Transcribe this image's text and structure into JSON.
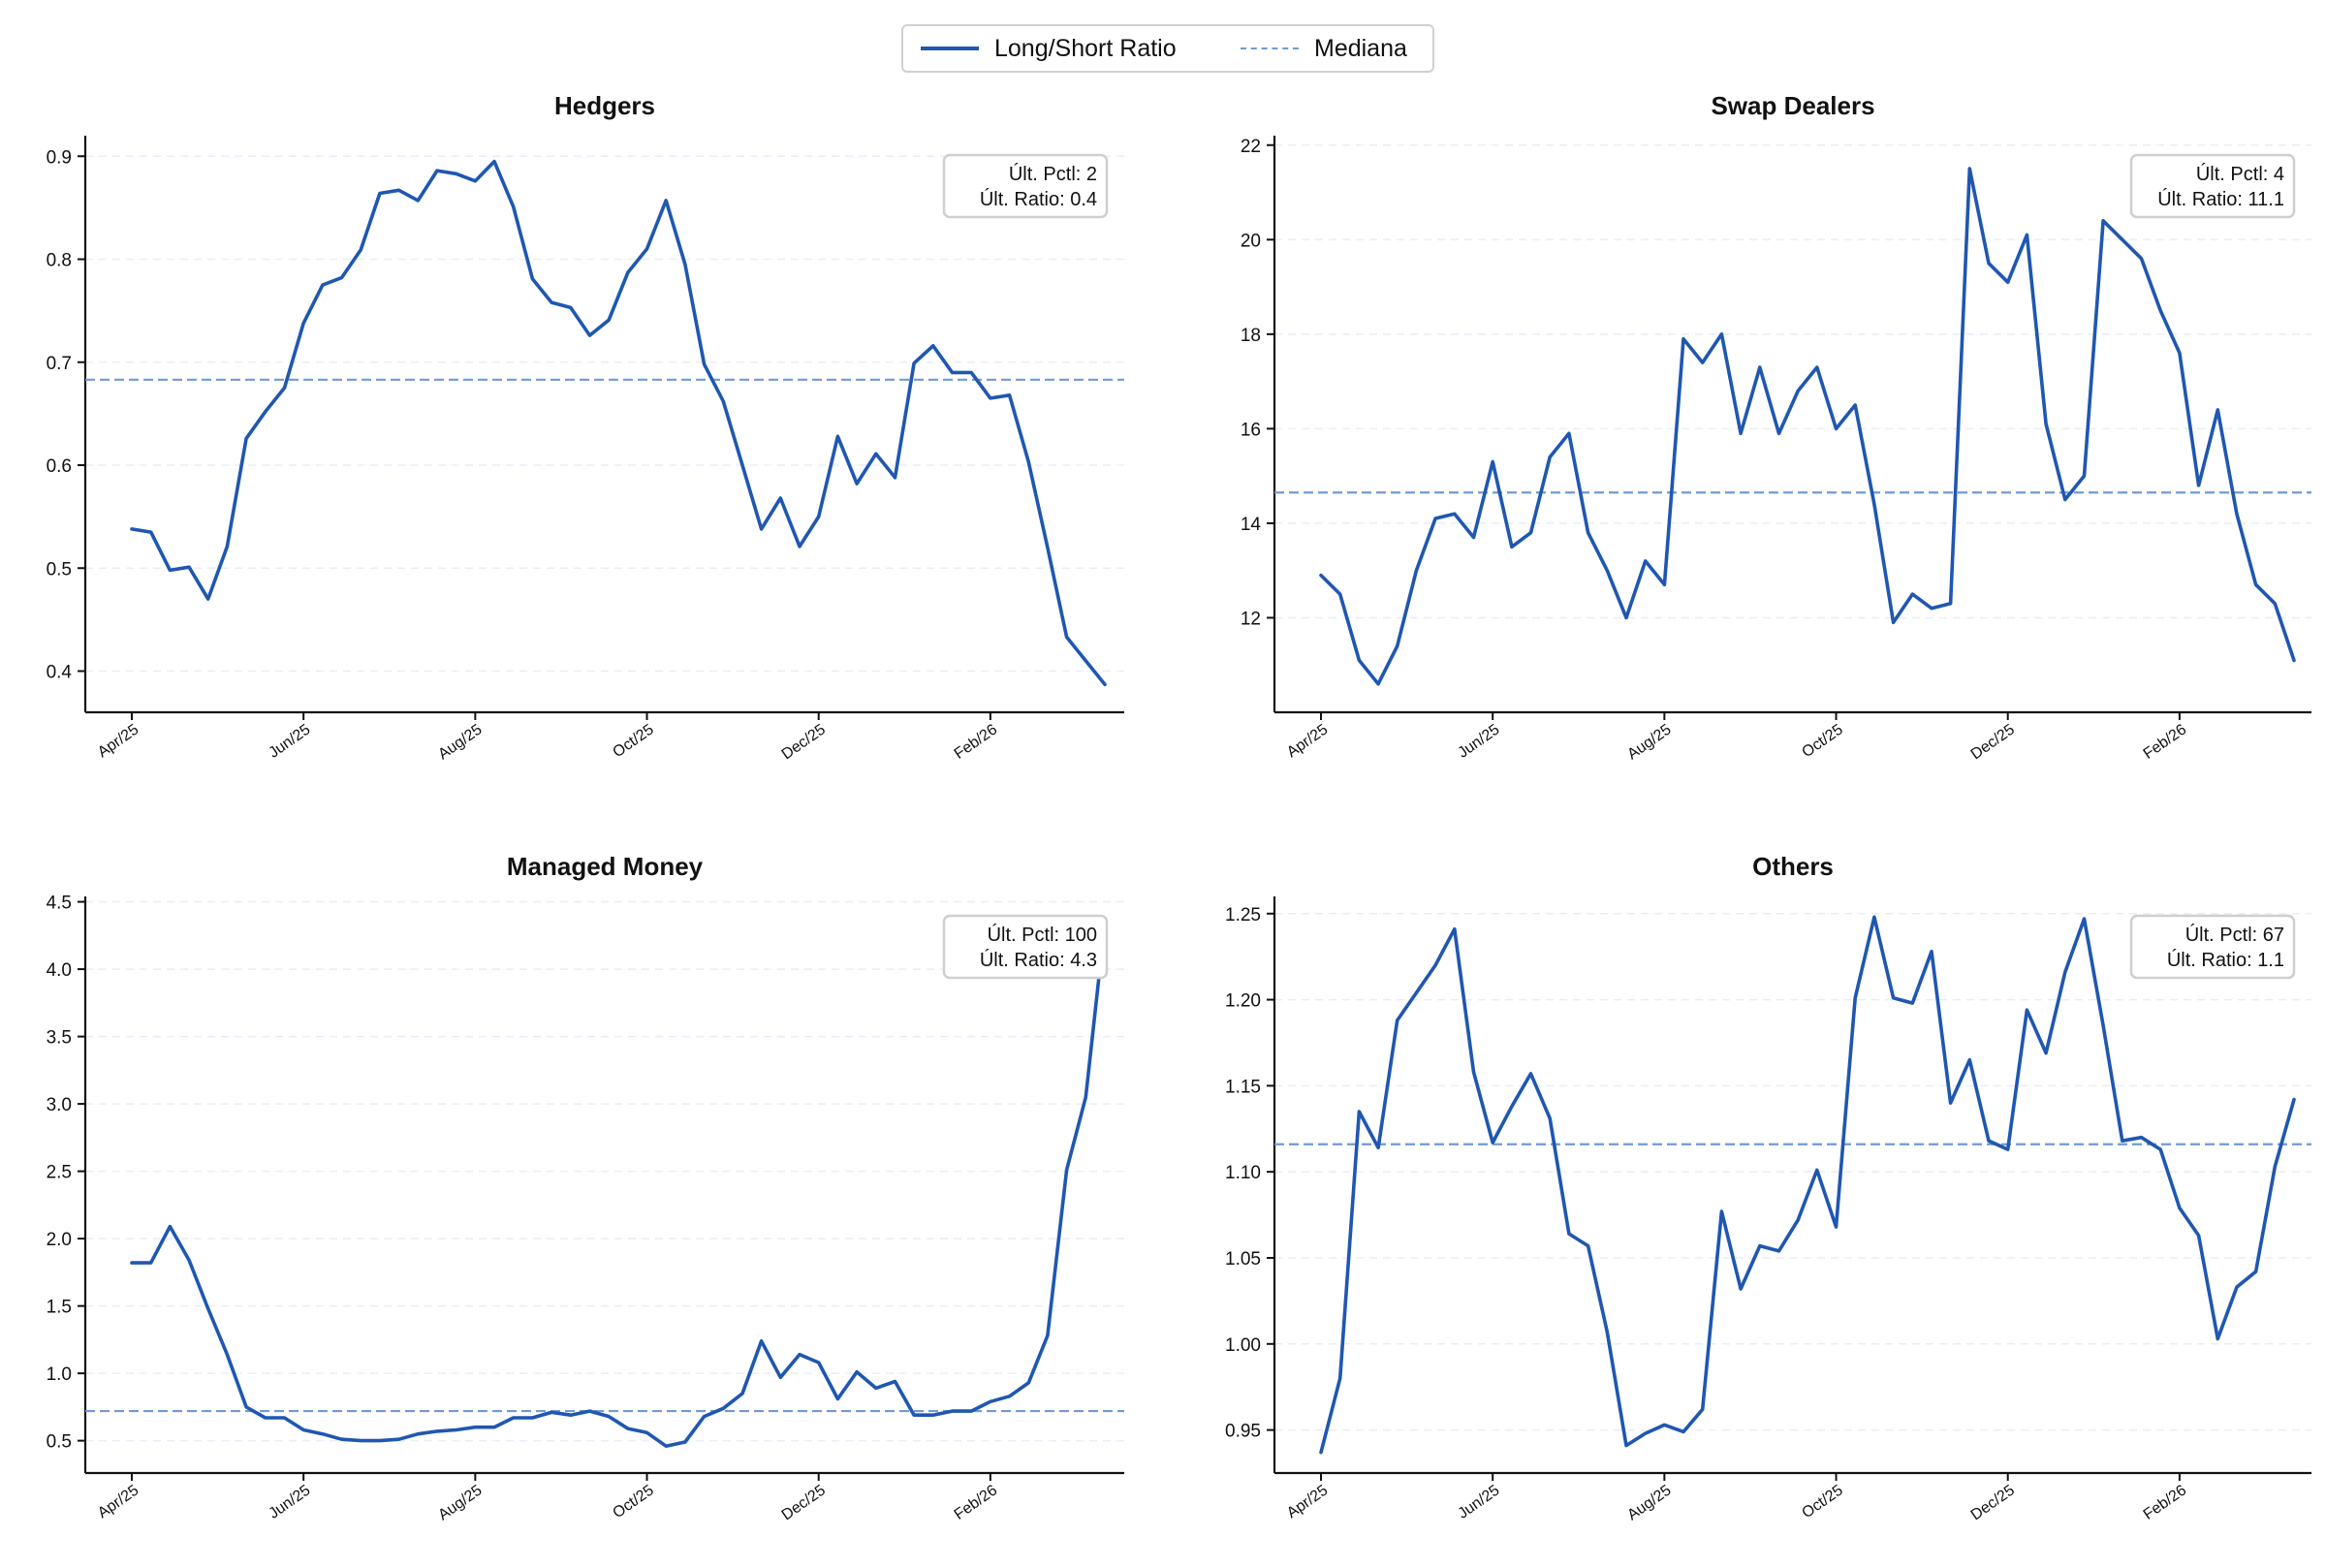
{
  "legend": {
    "line_label": "Long/Short Ratio",
    "median_label": "Mediana"
  },
  "colors": {
    "line": "#1f57b1",
    "median": "#6f9bd6",
    "grid": "#e8eef8",
    "axis": "#111111"
  },
  "x_ticks": [
    "Apr/25",
    "Jun/25",
    "Aug/25",
    "Oct/25",
    "Dec/25",
    "Feb/26"
  ],
  "chart_data": [
    {
      "type": "line",
      "title": "Hedgers",
      "ylim": [
        0.36,
        0.92
      ],
      "yticks": [
        "0.4",
        "0.5",
        "0.6",
        "0.7",
        "0.8",
        "0.9"
      ],
      "median": 0.683,
      "annotation": [
        "Últ. Pctl: 2",
        "Últ. Ratio: 0.4"
      ],
      "values": [
        0.538,
        0.535,
        0.498,
        0.501,
        0.47,
        0.521,
        0.626,
        0.652,
        0.675,
        0.738,
        0.775,
        0.782,
        0.809,
        0.864,
        0.867,
        0.857,
        0.886,
        0.883,
        0.876,
        0.895,
        0.851,
        0.781,
        0.758,
        0.753,
        0.726,
        0.741,
        0.787,
        0.81,
        0.857,
        0.795,
        0.698,
        0.662,
        0.6,
        0.538,
        0.568,
        0.521,
        0.55,
        0.628,
        0.582,
        0.611,
        0.588,
        0.699,
        0.716,
        0.69,
        0.69,
        0.665,
        0.668,
        0.603,
        0.52,
        0.433,
        0.41,
        0.387
      ]
    },
    {
      "type": "line",
      "title": "Swap Dealers",
      "ylim": [
        10.0,
        22.2
      ],
      "yticks": [
        "12",
        "14",
        "16",
        "18",
        "20",
        "22"
      ],
      "median": 14.65,
      "annotation": [
        "Últ. Pctl: 4",
        "Últ. Ratio: 11.1"
      ],
      "values": [
        12.9,
        12.5,
        11.1,
        10.6,
        11.4,
        13.0,
        14.1,
        14.2,
        13.7,
        15.3,
        13.5,
        13.8,
        15.4,
        15.9,
        13.8,
        13.0,
        12.0,
        13.2,
        12.7,
        17.9,
        17.4,
        18.0,
        15.9,
        17.3,
        15.9,
        16.8,
        17.3,
        16.0,
        16.5,
        14.4,
        11.9,
        12.5,
        12.2,
        12.3,
        21.5,
        19.5,
        19.1,
        20.1,
        16.1,
        14.5,
        15.0,
        20.4,
        20.0,
        19.6,
        18.5,
        17.6,
        14.8,
        16.4,
        14.2,
        12.7,
        12.3,
        11.1
      ]
    },
    {
      "type": "line",
      "title": "Managed Money",
      "ylim": [
        0.26,
        4.54
      ],
      "yticks": [
        "0.5",
        "1.0",
        "1.5",
        "2.0",
        "2.5",
        "3.0",
        "3.5",
        "4.0",
        "4.5"
      ],
      "median": 0.72,
      "annotation": [
        "Últ. Pctl: 100",
        "Últ. Ratio: 4.3"
      ],
      "values": [
        1.82,
        1.82,
        2.09,
        1.84,
        1.48,
        1.14,
        0.75,
        0.67,
        0.67,
        0.58,
        0.55,
        0.51,
        0.5,
        0.5,
        0.51,
        0.55,
        0.57,
        0.58,
        0.6,
        0.6,
        0.67,
        0.67,
        0.71,
        0.69,
        0.72,
        0.68,
        0.59,
        0.56,
        0.46,
        0.49,
        0.68,
        0.74,
        0.85,
        1.24,
        0.97,
        1.14,
        1.08,
        0.81,
        1.01,
        0.89,
        0.94,
        0.69,
        0.69,
        0.72,
        0.72,
        0.79,
        0.83,
        0.93,
        1.28,
        2.51,
        3.05,
        4.34
      ]
    },
    {
      "type": "line",
      "title": "Others",
      "ylim": [
        0.925,
        1.26
      ],
      "yticks": [
        "0.95",
        "1.00",
        "1.05",
        "1.10",
        "1.15",
        "1.20",
        "1.25"
      ],
      "median": 1.116,
      "annotation": [
        "Últ. Pctl: 67",
        "Últ. Ratio: 1.1"
      ],
      "values": [
        0.937,
        0.98,
        1.135,
        1.114,
        1.188,
        1.204,
        1.22,
        1.241,
        1.158,
        1.117,
        1.138,
        1.157,
        1.131,
        1.064,
        1.057,
        1.007,
        0.941,
        0.948,
        0.953,
        0.949,
        0.962,
        1.077,
        1.032,
        1.057,
        1.054,
        1.072,
        1.101,
        1.068,
        1.201,
        1.248,
        1.201,
        1.198,
        1.228,
        1.14,
        1.165,
        1.118,
        1.113,
        1.194,
        1.169,
        1.216,
        1.247,
        1.185,
        1.118,
        1.12,
        1.113,
        1.079,
        1.063,
        1.003,
        1.033,
        1.042,
        1.103,
        1.142
      ]
    }
  ]
}
